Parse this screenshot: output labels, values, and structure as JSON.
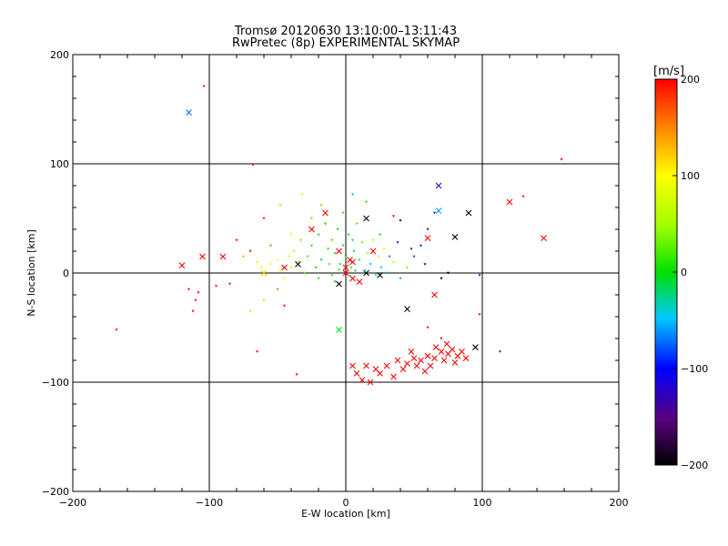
{
  "chart_data": {
    "type": "scatter",
    "title": "Tromsø 20120630 13:10:00–13:11:43",
    "subtitle": "RwPretec (8p) EXPERIMENTAL SKYMAP",
    "xlabel": "E-W location [km]",
    "ylabel": "N-S location [km]",
    "xlim": [
      -200,
      200
    ],
    "ylim": [
      -200,
      200
    ],
    "xticks": [
      -200,
      -100,
      0,
      100,
      200
    ],
    "yticks": [
      -200,
      -100,
      0,
      100,
      200
    ],
    "grid": true,
    "colorbar": {
      "label": "[m/s]",
      "range": [
        -200,
        200
      ],
      "ticks": [
        200,
        100,
        0,
        -100,
        -200
      ],
      "colormap": "black-purple-blue-cyan-green-yellow-orange-red"
    },
    "series": [
      {
        "marker": "x",
        "points": [
          [
            -115,
            147,
            -70
          ],
          [
            -60,
            0,
            120
          ],
          [
            -45,
            5,
            200
          ],
          [
            -35,
            8,
            -200
          ],
          [
            -25,
            40,
            200
          ],
          [
            -15,
            55,
            200
          ],
          [
            -5,
            20,
            200
          ],
          [
            0,
            5,
            200
          ],
          [
            5,
            10,
            200
          ],
          [
            10,
            -8,
            200
          ],
          [
            15,
            50,
            -200
          ],
          [
            20,
            20,
            200
          ],
          [
            15,
            0,
            -200
          ],
          [
            5,
            -5,
            200
          ],
          [
            25,
            -2,
            -200
          ],
          [
            -5,
            -10,
            -200
          ],
          [
            45,
            -33,
            -200
          ],
          [
            60,
            32,
            200
          ],
          [
            65,
            -20,
            200
          ],
          [
            68,
            57,
            -60
          ],
          [
            68,
            80,
            -130
          ],
          [
            80,
            33,
            -200
          ],
          [
            90,
            55,
            -200
          ],
          [
            95,
            -68,
            -200
          ],
          [
            120,
            65,
            200
          ],
          [
            145,
            32,
            200
          ],
          [
            -105,
            15,
            200
          ],
          [
            -120,
            7,
            200
          ],
          [
            -90,
            15,
            200
          ],
          [
            -5,
            -52,
            -5
          ],
          [
            5,
            -85,
            200
          ],
          [
            8,
            -92,
            200
          ],
          [
            12,
            -98,
            200
          ],
          [
            18,
            -100,
            200
          ],
          [
            25,
            -92,
            200
          ],
          [
            30,
            -85,
            200
          ],
          [
            38,
            -80,
            200
          ],
          [
            45,
            -83,
            200
          ],
          [
            50,
            -78,
            200
          ],
          [
            55,
            -80,
            200
          ],
          [
            60,
            -76,
            200
          ],
          [
            62,
            -85,
            200
          ],
          [
            65,
            -78,
            200
          ],
          [
            70,
            -72,
            200
          ],
          [
            72,
            -80,
            200
          ],
          [
            75,
            -74,
            200
          ],
          [
            78,
            -70,
            200
          ],
          [
            82,
            -76,
            200
          ],
          [
            85,
            -72,
            200
          ],
          [
            88,
            -78,
            200
          ],
          [
            58,
            -90,
            200
          ],
          [
            52,
            -85,
            200
          ],
          [
            42,
            -88,
            200
          ],
          [
            35,
            -95,
            200
          ],
          [
            22,
            -88,
            200
          ],
          [
            15,
            -85,
            200
          ],
          [
            48,
            -72,
            200
          ],
          [
            66,
            -68,
            200
          ],
          [
            74,
            -65,
            200
          ],
          [
            80,
            -82,
            200
          ],
          [
            0,
            0,
            200
          ],
          [
            3,
            12,
            200
          ]
        ]
      },
      {
        "marker": "dot",
        "points": [
          [
            -104,
            171,
            200
          ],
          [
            -68,
            99,
            200
          ],
          [
            158,
            104,
            200
          ],
          [
            130,
            70,
            200
          ],
          [
            -168,
            -52,
            200
          ],
          [
            -112,
            -35,
            200
          ],
          [
            -110,
            -25,
            200
          ],
          [
            -108,
            -18,
            200
          ],
          [
            -115,
            -15,
            200
          ],
          [
            -95,
            -12,
            200
          ],
          [
            -85,
            -10,
            200
          ],
          [
            -70,
            -35,
            120
          ],
          [
            -60,
            -25,
            120
          ],
          [
            -50,
            -15,
            160
          ],
          [
            -45,
            -30,
            200
          ],
          [
            -80,
            30,
            200
          ],
          [
            -70,
            20,
            200
          ],
          [
            -65,
            10,
            110
          ],
          [
            -62,
            5,
            100
          ],
          [
            -58,
            -2,
            90
          ],
          [
            -55,
            8,
            100
          ],
          [
            -50,
            12,
            95
          ],
          [
            -48,
            2,
            85
          ],
          [
            -45,
            -5,
            90
          ],
          [
            -42,
            15,
            80
          ],
          [
            -40,
            5,
            75
          ],
          [
            -38,
            20,
            60
          ],
          [
            -35,
            10,
            50
          ],
          [
            -33,
            30,
            40
          ],
          [
            -30,
            0,
            30
          ],
          [
            -28,
            15,
            20
          ],
          [
            -25,
            25,
            10
          ],
          [
            -22,
            5,
            0
          ],
          [
            -20,
            35,
            5
          ],
          [
            -18,
            12,
            -5
          ],
          [
            -15,
            45,
            0
          ],
          [
            -13,
            22,
            10
          ],
          [
            -10,
            30,
            15
          ],
          [
            -8,
            18,
            5
          ],
          [
            -6,
            40,
            0
          ],
          [
            -4,
            8,
            -10
          ],
          [
            -2,
            25,
            5
          ],
          [
            0,
            15,
            0
          ],
          [
            2,
            35,
            -5
          ],
          [
            4,
            5,
            10
          ],
          [
            6,
            20,
            -15
          ],
          [
            8,
            45,
            20
          ],
          [
            10,
            12,
            -20
          ],
          [
            12,
            28,
            30
          ],
          [
            14,
            2,
            -30
          ],
          [
            16,
            18,
            40
          ],
          [
            18,
            8,
            -40
          ],
          [
            20,
            30,
            50
          ],
          [
            22,
            -2,
            -45
          ],
          [
            24,
            15,
            60
          ],
          [
            26,
            5,
            -50
          ],
          [
            28,
            22,
            70
          ],
          [
            30,
            0,
            -55
          ],
          [
            35,
            10,
            50
          ],
          [
            40,
            -5,
            -60
          ],
          [
            45,
            5,
            40
          ],
          [
            50,
            15,
            -80
          ],
          [
            55,
            25,
            -100
          ],
          [
            60,
            40,
            -120
          ],
          [
            65,
            55,
            -90
          ],
          [
            70,
            -5,
            -200
          ],
          [
            75,
            0,
            -200
          ],
          [
            98,
            -2,
            -120
          ],
          [
            113,
            -72,
            -140
          ],
          [
            -36,
            -93,
            200
          ],
          [
            -65,
            -72,
            200
          ],
          [
            98,
            -38,
            200
          ],
          [
            -48,
            62,
            40
          ],
          [
            -32,
            72,
            60
          ],
          [
            -18,
            62,
            30
          ],
          [
            5,
            72,
            -40
          ],
          [
            15,
            65,
            10
          ],
          [
            35,
            52,
            200
          ],
          [
            40,
            48,
            -200
          ],
          [
            60,
            -50,
            200
          ],
          [
            70,
            -60,
            200
          ],
          [
            -60,
            50,
            200
          ],
          [
            -20,
            -5,
            5
          ],
          [
            -10,
            -2,
            10
          ],
          [
            -5,
            3,
            15
          ],
          [
            3,
            -3,
            -10
          ],
          [
            7,
            2,
            -20
          ],
          [
            -12,
            8,
            20
          ],
          [
            -8,
            -8,
            0
          ],
          [
            5,
            30,
            -25
          ],
          [
            -2,
            55,
            10
          ],
          [
            -25,
            50,
            30
          ],
          [
            -40,
            35,
            90
          ],
          [
            -55,
            25,
            160
          ],
          [
            -75,
            15,
            140
          ],
          [
            25,
            35,
            -15
          ],
          [
            32,
            15,
            -70
          ],
          [
            38,
            28,
            -110
          ],
          [
            48,
            22,
            -150
          ],
          [
            58,
            8,
            -180
          ]
        ]
      }
    ]
  }
}
